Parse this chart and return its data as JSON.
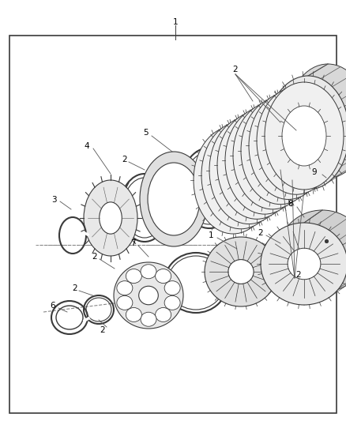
{
  "background_color": "#ffffff",
  "border_color": "#3a3a3a",
  "line_color": "#3a3a3a",
  "fig_width": 4.38,
  "fig_height": 5.33,
  "dpi": 100
}
